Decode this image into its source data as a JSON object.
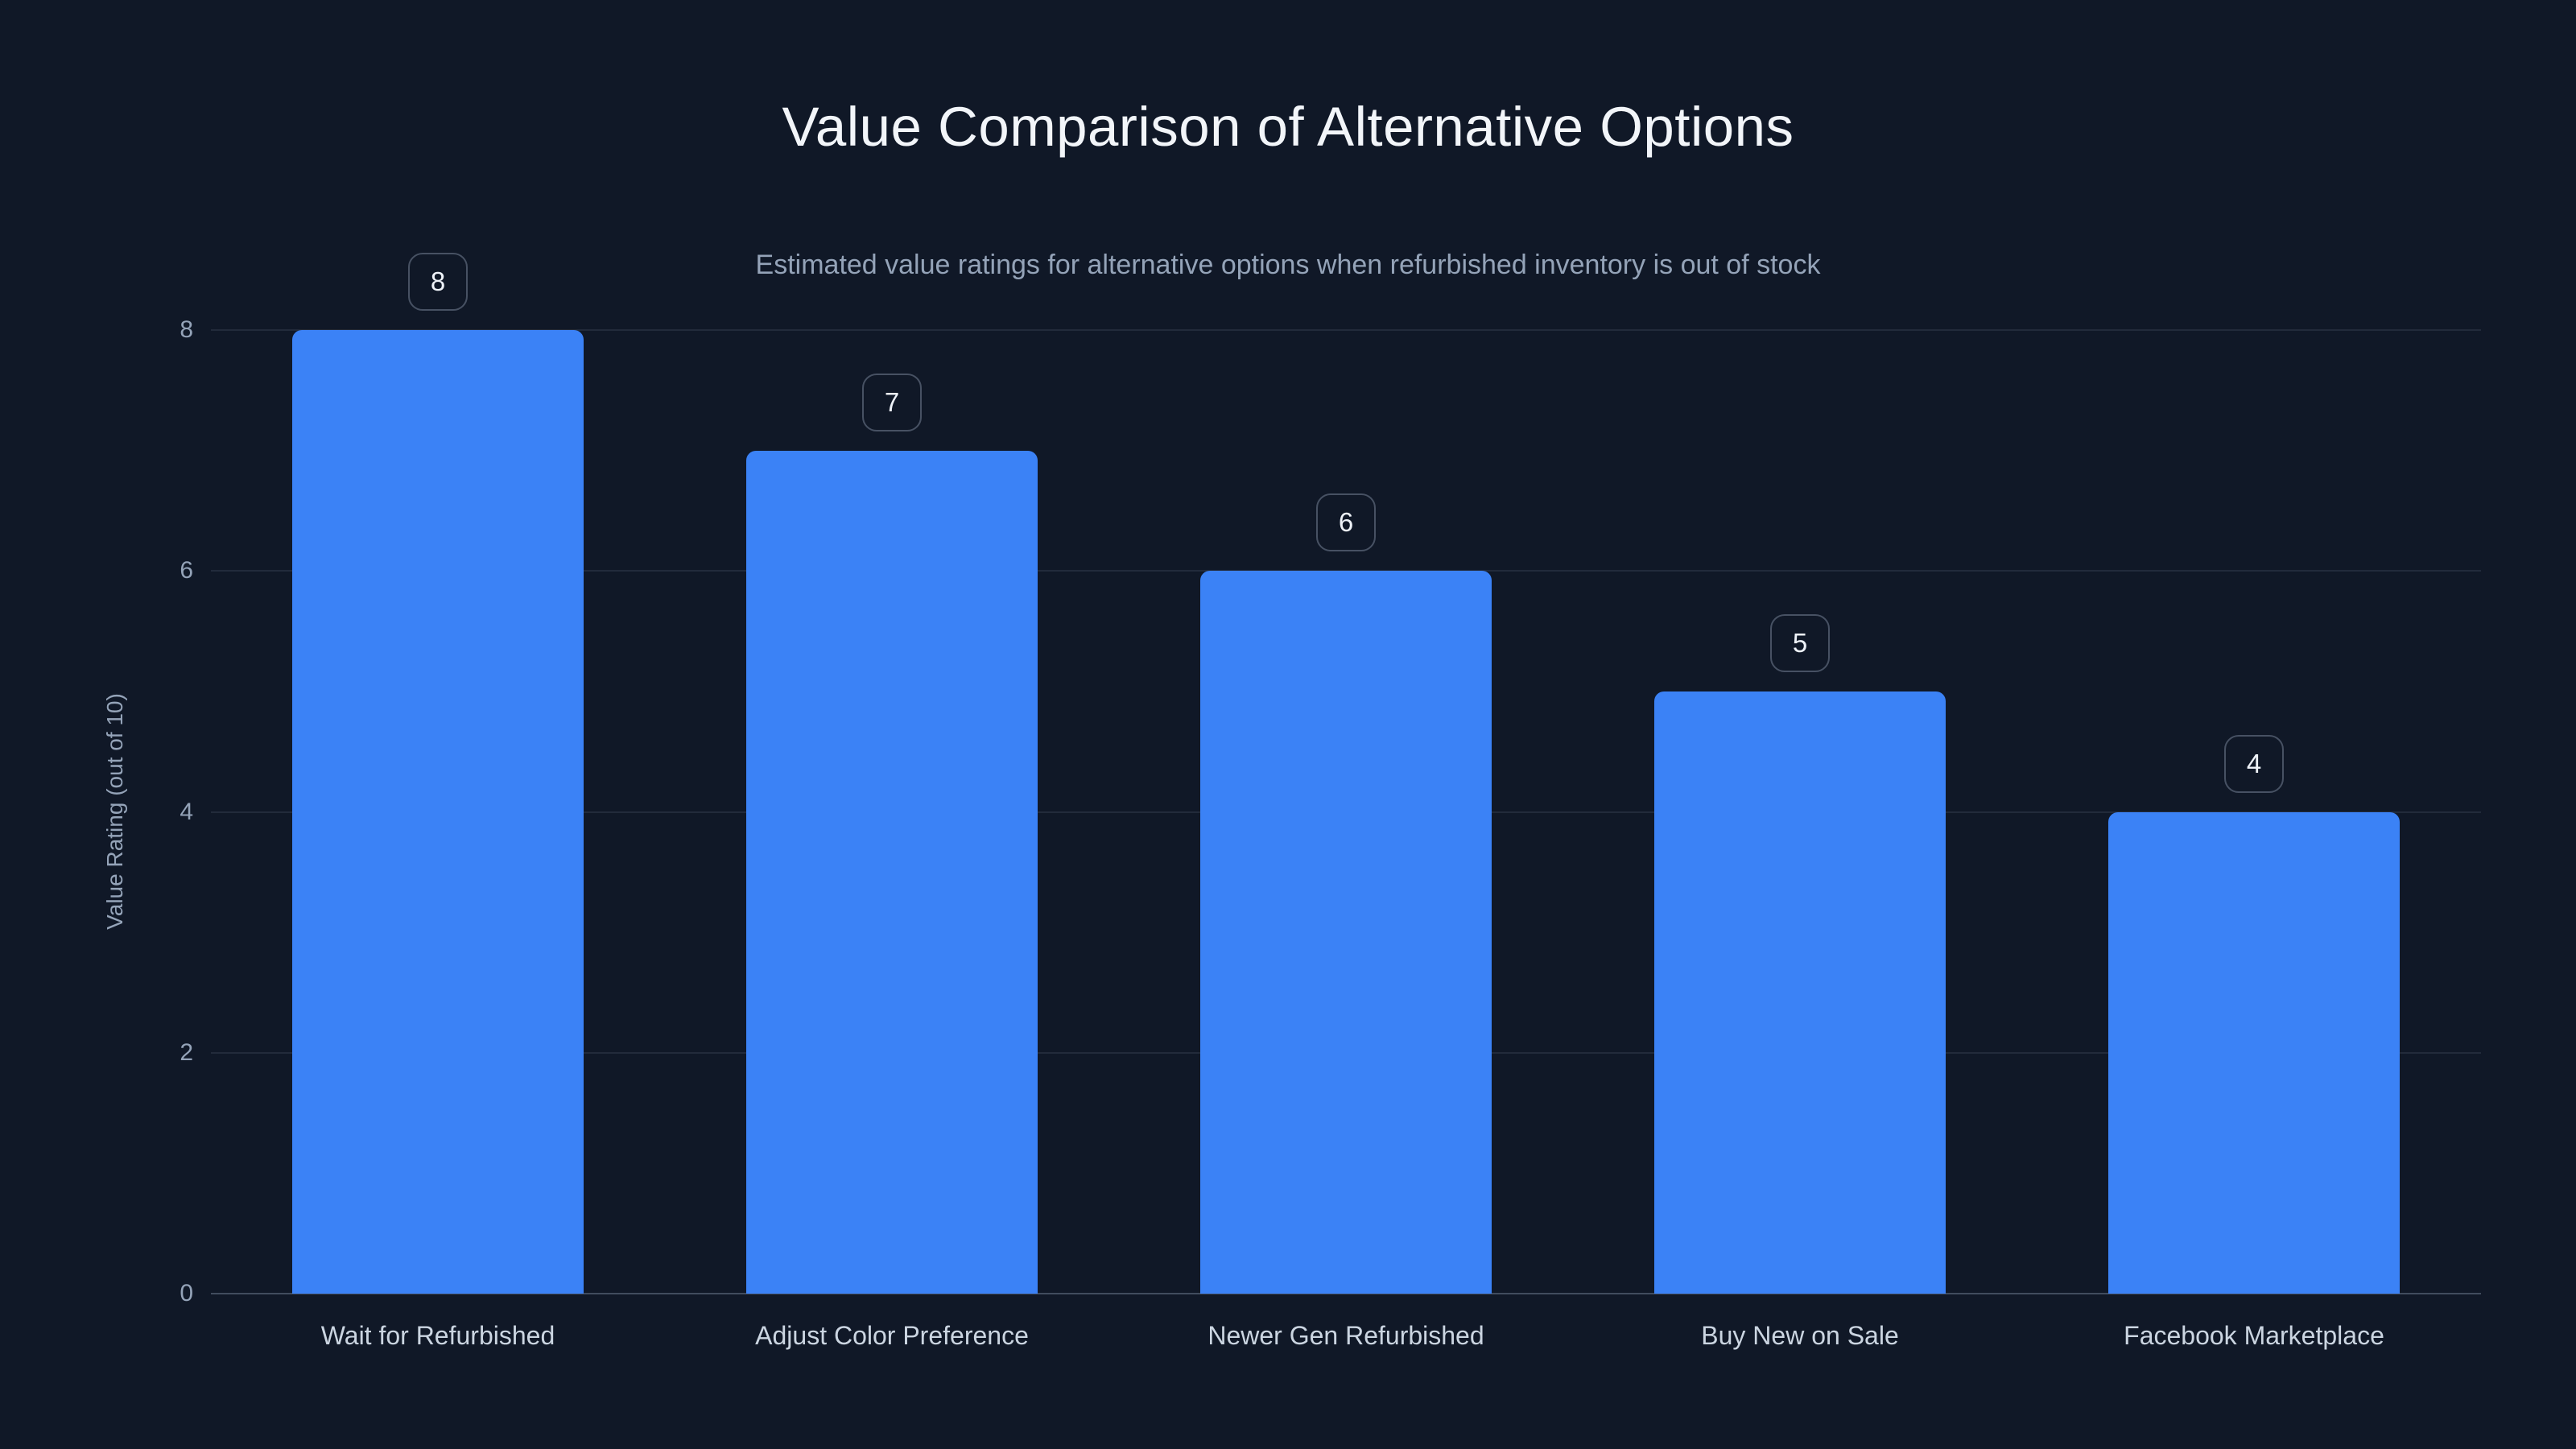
{
  "chart_data": {
    "type": "bar",
    "title": "Value Comparison of Alternative Options",
    "subtitle": "Estimated value ratings for alternative options when refurbished inventory is out of stock",
    "categories": [
      "Wait for Refurbished",
      "Adjust Color Preference",
      "Newer Gen Refurbished",
      "Buy New on Sale",
      "Facebook Marketplace"
    ],
    "values": [
      8,
      7,
      6,
      5,
      4
    ],
    "value_label_style": "boxed badge above each bar",
    "xlabel": "",
    "ylabel": "Value Rating (out of 10)",
    "ylim": [
      0,
      8
    ],
    "yticks": [
      0,
      2,
      4,
      6,
      8
    ],
    "grid": "horizontal",
    "legend": "none",
    "colors": {
      "background": "#101827",
      "bar": "#3b82f6",
      "title_text": "#f2f5f9",
      "subtitle_text": "#94a3b8",
      "axis_text": "#94a3b8",
      "category_text": "#cbd5e1",
      "gridline": "rgba(148,163,184,0.14)",
      "baseline": "rgba(148,163,184,0.38)",
      "badge_border": "rgba(148,163,184,0.42)",
      "badge_text": "#eef2f8"
    }
  }
}
